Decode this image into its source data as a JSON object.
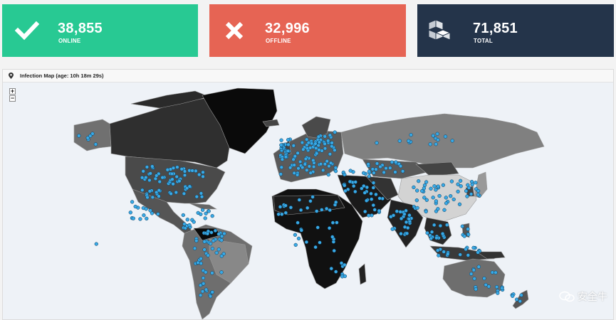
{
  "stats": {
    "online": {
      "value": "38,855",
      "label": "ONLINE",
      "icon": "check-icon",
      "color": "#28c993"
    },
    "offline": {
      "value": "32,996",
      "label": "OFFLINE",
      "icon": "close-icon",
      "color": "#e66454"
    },
    "total": {
      "value": "71,851",
      "label": "TOTAL",
      "icon": "cubes-icon",
      "color": "#24344a"
    }
  },
  "map": {
    "title": "Infection Map (age: 10h 18m 29s)",
    "icon": "map-pin-icon",
    "zoom_in_label": "+",
    "zoom_out_label": "−",
    "ocean_color": "#eef2f7",
    "marker_color": "#38a9e6",
    "watermark": "安全牛"
  }
}
